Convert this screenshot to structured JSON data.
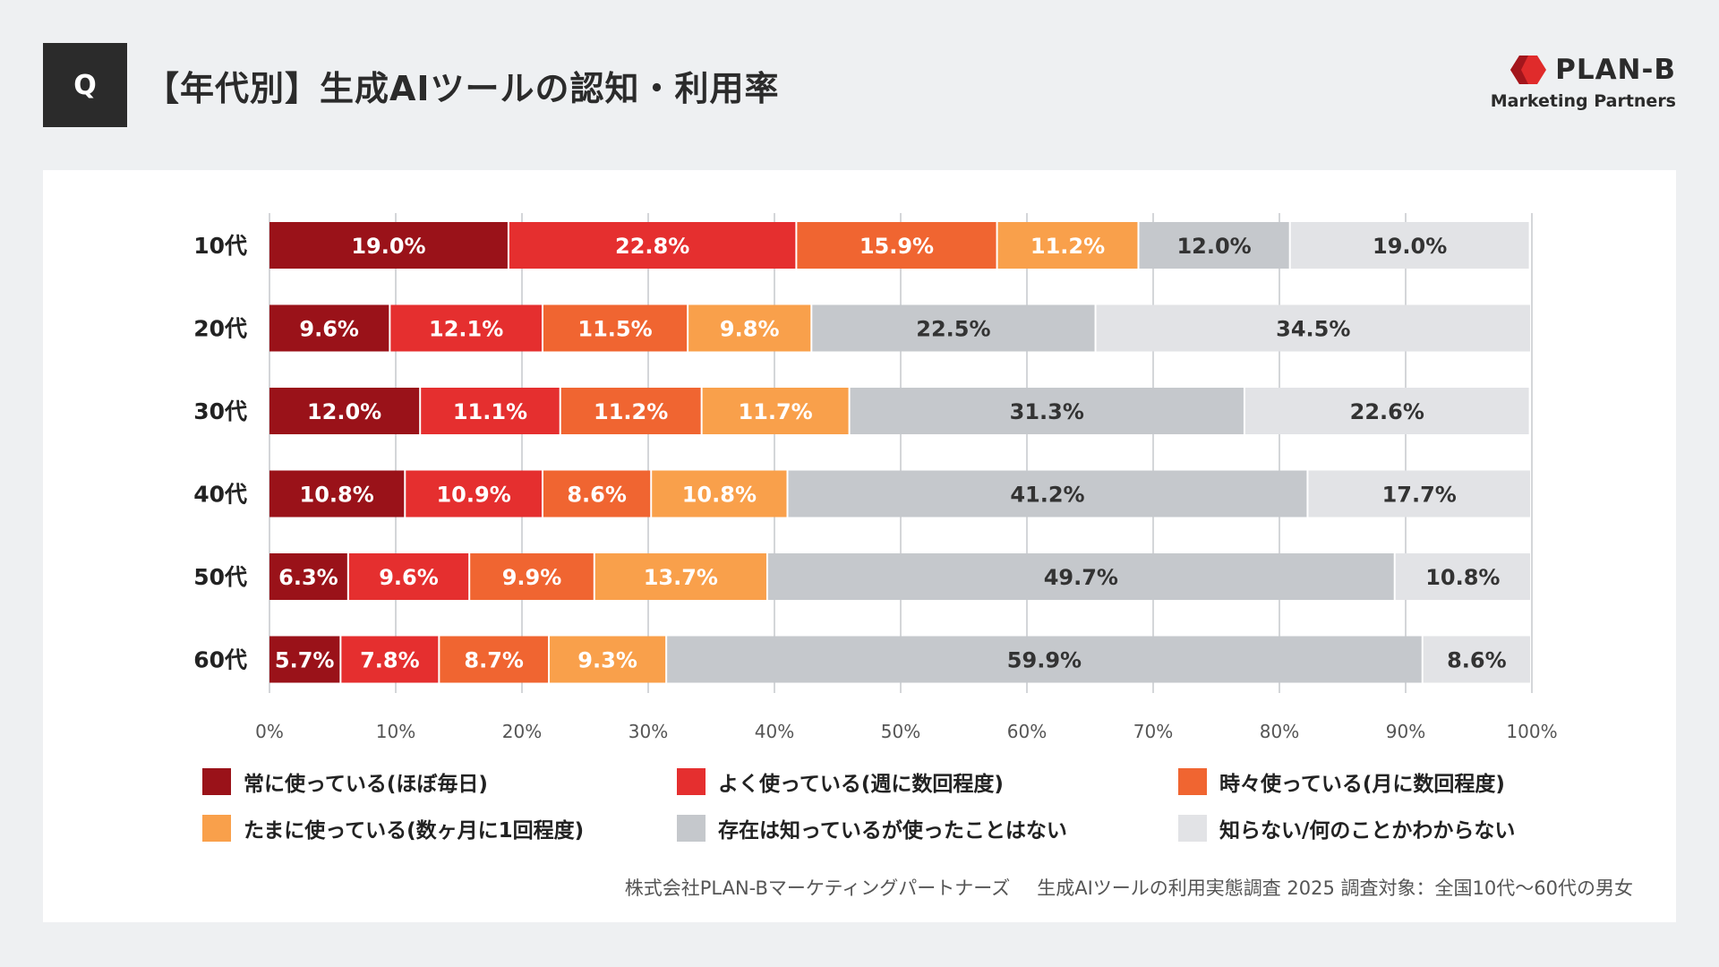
{
  "header": {
    "q_label": "Q",
    "title": "【年代別】生成AIツールの認知・利用率",
    "logo_name": "PLAN-B",
    "logo_sub": "Marketing Partners",
    "logo_color": "#e02b2b"
  },
  "chart_data": {
    "type": "bar",
    "orientation": "horizontal",
    "stacked": true,
    "categories": [
      "10代",
      "20代",
      "30代",
      "40代",
      "50代",
      "60代"
    ],
    "series": [
      {
        "name": "常に使っている(ほぼ毎日)",
        "color": "#9a1219",
        "values": [
          19.0,
          9.6,
          12.0,
          10.8,
          6.3,
          5.7
        ]
      },
      {
        "name": "よく使っている(週に数回程度)",
        "color": "#e52f2f",
        "values": [
          22.8,
          12.1,
          11.1,
          10.9,
          9.6,
          7.8
        ]
      },
      {
        "name": "時々使っている(月に数回程度)",
        "color": "#f06531",
        "values": [
          15.9,
          11.5,
          11.2,
          8.6,
          9.9,
          8.7
        ]
      },
      {
        "name": "たまに使っている(数ヶ月に1回程度)",
        "color": "#f9a04b",
        "values": [
          11.2,
          9.8,
          11.7,
          10.8,
          13.7,
          9.3
        ]
      },
      {
        "name": "存在は知っているが使ったことはない",
        "color": "#c5c8cc",
        "values": [
          12.0,
          22.5,
          31.3,
          41.2,
          49.7,
          59.9
        ]
      },
      {
        "name": "知らない/何のことかわからない",
        "color": "#e2e3e6",
        "values": [
          19.0,
          34.5,
          22.6,
          17.7,
          10.8,
          8.6
        ]
      }
    ],
    "xlim": [
      0,
      100
    ],
    "xticks": [
      "0%",
      "10%",
      "20%",
      "30%",
      "40%",
      "50%",
      "60%",
      "70%",
      "80%",
      "90%",
      "100%"
    ],
    "grid": true,
    "legend_position": "bottom",
    "label_colors": {
      "dark": "#ffffff",
      "light": "#333333"
    }
  },
  "source": {
    "company": "株式会社PLAN-Bマーケティングパートナーズ",
    "survey": "生成AIツールの利用実態調査 2025 調査対象：全国10代～60代の男女"
  }
}
